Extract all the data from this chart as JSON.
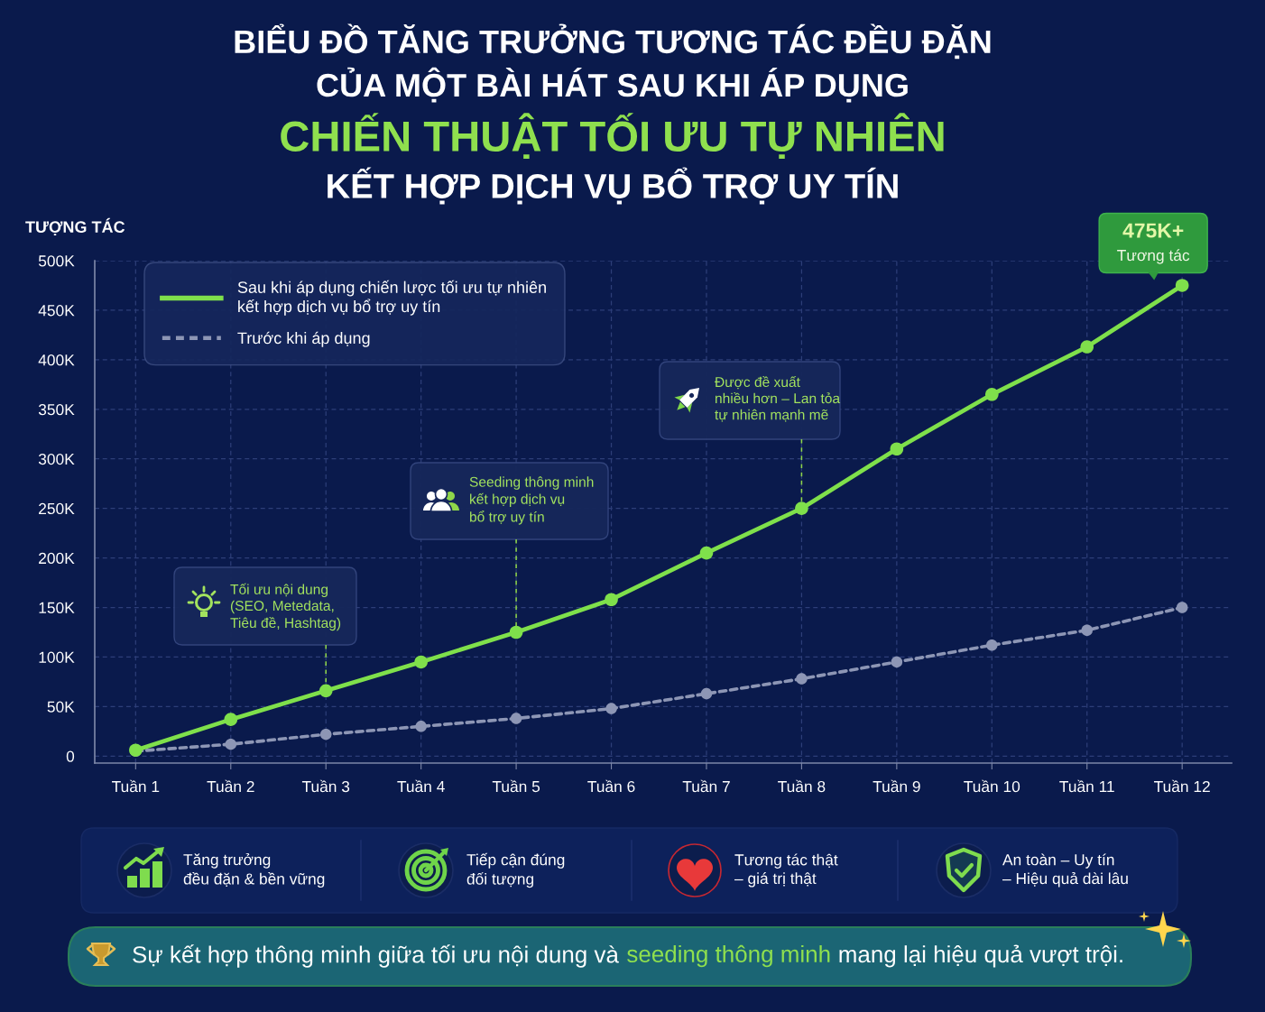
{
  "chart_data": {
    "type": "line",
    "title": "BIỂU ĐỒ TĂNG TRƯỞNG TƯƠNG TÁC ĐỀU ĐẶN\nCỦA MỘT BÀI HÁT SAU KHI ÁP DỤNG",
    "subtitle": "CHIẾN THUẬT TỐI ƯU TỰ NHIÊN\nKẾT HỢP DỊCH VỤ BỔ TRỢ UY TÍN",
    "ylabel": "TƯỢNG TÁC",
    "categories": [
      "Tuần 1",
      "Tuần 2",
      "Tuần 3",
      "Tuần 4",
      "Tuần 5",
      "Tuần 6",
      "Tuần 7",
      "Tuần 8",
      "Tuần 9",
      "Tuần 10",
      "Tuần 11",
      "Tuần 12"
    ],
    "series": [
      {
        "name": "Sau khi áp dụng chiến lược tối ưu tự nhiên\nkết hợp dịch vụ bổ trợ uy tín",
        "color": "#7fe04b",
        "line_style": "solid",
        "values": [
          6000,
          37000,
          66000,
          95000,
          125000,
          158000,
          205000,
          250000,
          310000,
          365000,
          413000,
          475000
        ]
      },
      {
        "name": "Trước khi áp dụng",
        "color": "#8d96b5",
        "line_style": "dashed",
        "values": [
          5000,
          12000,
          22000,
          30000,
          38000,
          48000,
          63000,
          78000,
          95000,
          112000,
          127000,
          150000
        ]
      }
    ],
    "ylim": [
      -7000,
      500000
    ],
    "yticks": [
      0,
      {
        "value": 50000,
        "label": "50K"
      },
      {
        "value": 100000,
        "label": "100K"
      },
      {
        "value": 150000,
        "label": "150K"
      },
      {
        "value": 200000,
        "label": "200K"
      },
      {
        "value": 250000,
        "label": "250K"
      },
      {
        "value": 300000,
        "label": "300K"
      },
      {
        "value": 350000,
        "label": "350K"
      },
      {
        "value": 400000,
        "label": "400K"
      },
      {
        "value": 450000,
        "label": "450K"
      },
      {
        "value": 500000,
        "label": "500K"
      }
    ],
    "grid": true,
    "legend": "top left",
    "marker": "circle",
    "annotations": [
      {
        "text": "475K+\nTương tác",
        "x": "Tuần 12",
        "y": 475000
      },
      {
        "text": "Tối ưu nội dung\n(SEO, Metedata,\nTiêu đề, Hashtag)",
        "x": "Tuần 3",
        "y": 66000
      },
      {
        "text": "Seeding thông minh\nkết hợp dịch vụ\nbổ trợ uy tín",
        "x": "Tuần 5",
        "y": 125000
      },
      {
        "text": "Được đề xuất\nnhiều hơn – Lan tỏa\ntự nhiên mạnh mẽ",
        "x": "Tuần 8",
        "y": 250000
      },
      "Tăng trưởng\nđều đặn & bền vững",
      "Tiếp cận đúng\nđối tượng",
      "Tương tác thật\n– giá trị thật",
      "An toàn – Uy tín\n– Hiệu quả dài lâu",
      "Sự kết hợp thông minh giữa tối ưu nội dung và",
      "seeding thông minh",
      "mang lại hiệu quả vượt trội."
    ]
  }
}
